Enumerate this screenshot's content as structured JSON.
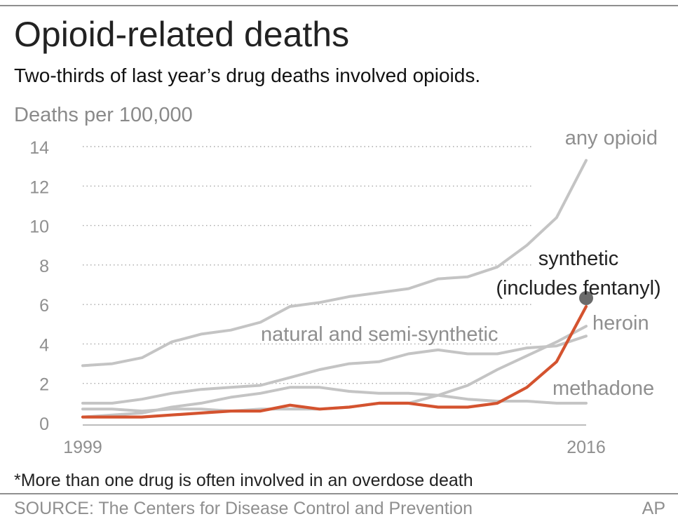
{
  "header": {
    "title": "Opioid-related deaths",
    "subtitle": "Two-thirds of last year’s drug deaths involved opioids."
  },
  "chart_data": {
    "type": "line",
    "title": "Opioid-related deaths",
    "subtitle": "Two-thirds of last year’s drug deaths involved opioids.",
    "ylabel": "Deaths per 100,000",
    "xlabel": "",
    "x": [
      1999,
      2000,
      2001,
      2002,
      2003,
      2004,
      2005,
      2006,
      2007,
      2008,
      2009,
      2010,
      2011,
      2012,
      2013,
      2014,
      2015,
      2016
    ],
    "x_tick_labels": [
      "1999",
      "2016"
    ],
    "y_ticks": [
      0,
      2,
      4,
      6,
      8,
      10,
      12,
      14
    ],
    "ylim": [
      0,
      14
    ],
    "grid": "dotted horizontal",
    "series": [
      {
        "name": "any opioid",
        "color": "#c4c4c4",
        "values": [
          2.9,
          3.0,
          3.3,
          4.1,
          4.5,
          4.7,
          5.1,
          5.9,
          6.1,
          6.4,
          6.6,
          6.8,
          7.3,
          7.4,
          7.9,
          9.0,
          10.4,
          13.3
        ]
      },
      {
        "name": "natural and semi-synthetic",
        "color": "#c4c4c4",
        "values": [
          1.0,
          1.0,
          1.2,
          1.5,
          1.7,
          1.8,
          1.9,
          2.3,
          2.7,
          3.0,
          3.1,
          3.5,
          3.7,
          3.5,
          3.5,
          3.8,
          3.9,
          4.4
        ]
      },
      {
        "name": "heroin",
        "color": "#c4c4c4",
        "values": [
          0.7,
          0.7,
          0.6,
          0.7,
          0.7,
          0.6,
          0.7,
          0.7,
          0.7,
          0.8,
          1.0,
          1.0,
          1.4,
          1.9,
          2.7,
          3.4,
          4.1,
          4.9
        ]
      },
      {
        "name": "methadone",
        "color": "#c4c4c4",
        "values": [
          0.3,
          0.4,
          0.5,
          0.8,
          1.0,
          1.3,
          1.5,
          1.8,
          1.8,
          1.6,
          1.5,
          1.5,
          1.4,
          1.2,
          1.1,
          1.1,
          1.0,
          1.0
        ]
      },
      {
        "name": "synthetic (includes fentanyl)",
        "color": "#d4532f",
        "values": [
          0.3,
          0.3,
          0.3,
          0.4,
          0.5,
          0.6,
          0.6,
          0.9,
          0.7,
          0.8,
          1.0,
          1.0,
          0.8,
          0.8,
          1.0,
          1.8,
          3.1,
          5.9
        ]
      }
    ],
    "labels": {
      "any_opioid": "any opioid",
      "natural": "natural and semi-synthetic",
      "heroin": "heroin",
      "methadone": "methadone",
      "synthetic_line1": "synthetic",
      "synthetic_line2": "(includes fentanyl)"
    },
    "marker_color": "#6b6b6b"
  },
  "footer": {
    "note": "*More than one drug is often involved in an overdose death",
    "source": "SOURCE:  The Centers for Disease Control and Prevention",
    "credit": "AP"
  }
}
